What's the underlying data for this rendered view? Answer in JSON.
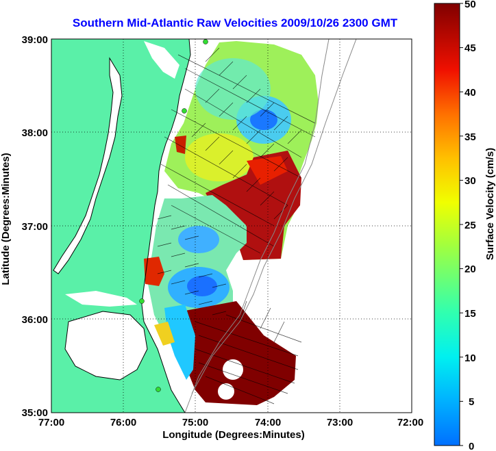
{
  "title": "Southern Mid-Atlantic Raw Velocities 2009/10/26 2300 GMT",
  "xlabel": "Longitude (Degrees:Minutes)",
  "ylabel": "Latitude (Degrees:Minutes)",
  "x_ticks": [
    "77:00",
    "76:00",
    "75:00",
    "74:00",
    "73:00",
    "72:00"
  ],
  "y_ticks": [
    "39:00",
    "38:00",
    "37:00",
    "36:00",
    "35:00"
  ],
  "colorbar": {
    "label": "Surface Velocity (cm/s)",
    "ticks": [
      "50",
      "45",
      "40",
      "35",
      "30",
      "25",
      "20",
      "15",
      "10",
      "5",
      "0"
    ],
    "range": [
      0,
      50
    ],
    "colormap": [
      "#0000a0",
      "#0040ff",
      "#00c0ff",
      "#40ffc0",
      "#c0ff40",
      "#ffc000",
      "#ff4000",
      "#a00000",
      "#800000"
    ]
  },
  "colors": {
    "land": "#5af0a8",
    "grid": "#000000",
    "title": "#0000ff",
    "station": "#33dd33"
  },
  "chart_data": {
    "type": "map",
    "xlim_deg": [
      -77,
      -72
    ],
    "ylim_deg": [
      35,
      39
    ],
    "grid": true,
    "colorbar_units": "cm/s",
    "velocity_regions": [
      {
        "lon": -74.1,
        "lat": 38.15,
        "speed": 6
      },
      {
        "lon": -74.0,
        "lat": 37.2,
        "speed": 48
      },
      {
        "lon": -74.2,
        "lat": 35.5,
        "speed": 50
      },
      {
        "lon": -74.9,
        "lat": 36.3,
        "speed": 8
      },
      {
        "lon": -74.9,
        "lat": 36.85,
        "speed": 10
      },
      {
        "lon": -75.6,
        "lat": 36.45,
        "speed": 45
      },
      {
        "lon": -74.5,
        "lat": 37.7,
        "speed": 22
      }
    ]
  }
}
